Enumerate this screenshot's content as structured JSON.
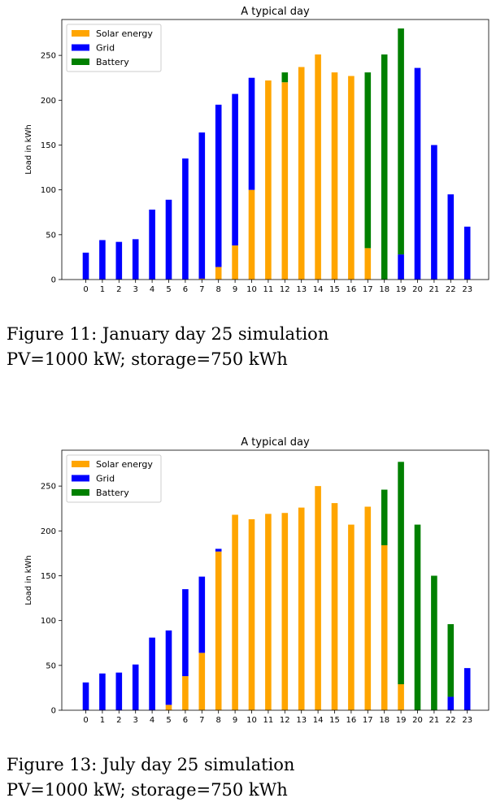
{
  "colors": {
    "solar": "#FFA500",
    "grid": "#0000FF",
    "battery": "#008000"
  },
  "chart_data": [
    {
      "type": "bar",
      "stacked": true,
      "title": "A typical day",
      "xlabel": "",
      "ylabel": "Load in kWh",
      "ylim": [
        0,
        290
      ],
      "yticks": [
        0,
        50,
        100,
        150,
        200,
        250
      ],
      "categories": [
        "0",
        "1",
        "2",
        "3",
        "4",
        "5",
        "6",
        "7",
        "8",
        "9",
        "10",
        "11",
        "12",
        "13",
        "14",
        "15",
        "16",
        "17",
        "18",
        "19",
        "20",
        "21",
        "22",
        "23"
      ],
      "legend_position": "top-left",
      "series": [
        {
          "name": "Solar energy",
          "color": "#FFA500",
          "values": [
            0,
            0,
            0,
            0,
            0,
            0,
            0,
            1,
            14,
            38,
            100,
            222,
            220,
            237,
            251,
            231,
            227,
            35,
            0,
            0,
            0,
            0,
            0,
            0
          ]
        },
        {
          "name": "Grid",
          "color": "#0000FF",
          "values": [
            30,
            44,
            42,
            45,
            78,
            89,
            135,
            163,
            181,
            169,
            125,
            0,
            0,
            0,
            0,
            0,
            0,
            0,
            0,
            28,
            236,
            150,
            95,
            59
          ]
        },
        {
          "name": "Battery",
          "color": "#008000",
          "values": [
            0,
            0,
            0,
            0,
            0,
            0,
            0,
            0,
            0,
            0,
            0,
            0,
            11,
            0,
            0,
            0,
            0,
            196,
            251,
            252,
            0,
            0,
            0,
            0
          ]
        }
      ]
    },
    {
      "type": "bar",
      "stacked": true,
      "title": "A typical day",
      "xlabel": "",
      "ylabel": "Load in kWh",
      "ylim": [
        0,
        290
      ],
      "yticks": [
        0,
        50,
        100,
        150,
        200,
        250
      ],
      "categories": [
        "0",
        "1",
        "2",
        "3",
        "4",
        "5",
        "6",
        "7",
        "8",
        "9",
        "10",
        "11",
        "12",
        "13",
        "14",
        "15",
        "16",
        "17",
        "18",
        "19",
        "20",
        "21",
        "22",
        "23"
      ],
      "legend_position": "top-left",
      "series": [
        {
          "name": "Solar energy",
          "color": "#FFA500",
          "values": [
            0,
            0,
            0,
            0,
            0,
            6,
            38,
            64,
            177,
            218,
            213,
            219,
            220,
            226,
            250,
            231,
            207,
            227,
            184,
            29,
            0,
            0,
            0,
            0
          ]
        },
        {
          "name": "Grid",
          "color": "#0000FF",
          "values": [
            31,
            41,
            42,
            51,
            81,
            83,
            97,
            85,
            3,
            0,
            0,
            0,
            0,
            0,
            0,
            0,
            0,
            0,
            0,
            0,
            0,
            0,
            15,
            47
          ]
        },
        {
          "name": "Battery",
          "color": "#008000",
          "values": [
            0,
            0,
            0,
            0,
            0,
            0,
            0,
            0,
            0,
            0,
            0,
            0,
            0,
            0,
            0,
            0,
            0,
            0,
            62,
            248,
            207,
            150,
            81,
            0
          ]
        }
      ]
    }
  ],
  "captions": [
    {
      "line1": "Figure 11:  January day 25 simulation",
      "line2": "PV=1000 kW; storage=750 kWh"
    },
    {
      "line1": "Figure 13:  July day 25 simulation",
      "line2": "PV=1000 kW; storage=750 kWh"
    }
  ]
}
